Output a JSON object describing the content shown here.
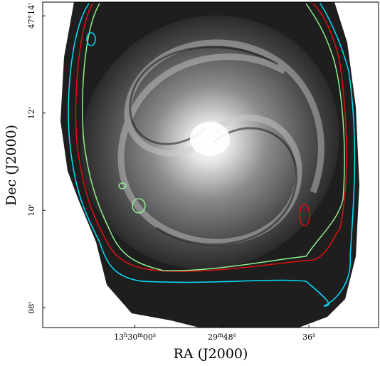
{
  "chart_data": {
    "type": "image",
    "x_label": "RA (J2000)",
    "y_label": "Dec (J2000)",
    "xlim": [
      202.553,
      202.36
    ],
    "ylim": [
      47.1265,
      47.238
    ],
    "xticks": [
      {
        "value": 202.5,
        "label": "13h30m00s"
      },
      {
        "value": 202.45,
        "label": "29m48s"
      },
      {
        "value": 202.4,
        "label": "36s"
      }
    ],
    "yticks": [
      {
        "value": 47.2333,
        "label": "47°14'"
      },
      {
        "value": 47.2,
        "label": "12'"
      },
      {
        "value": 47.1667,
        "label": "10'"
      },
      {
        "value": 47.1333,
        "label": "08'"
      }
    ]
  }
}
